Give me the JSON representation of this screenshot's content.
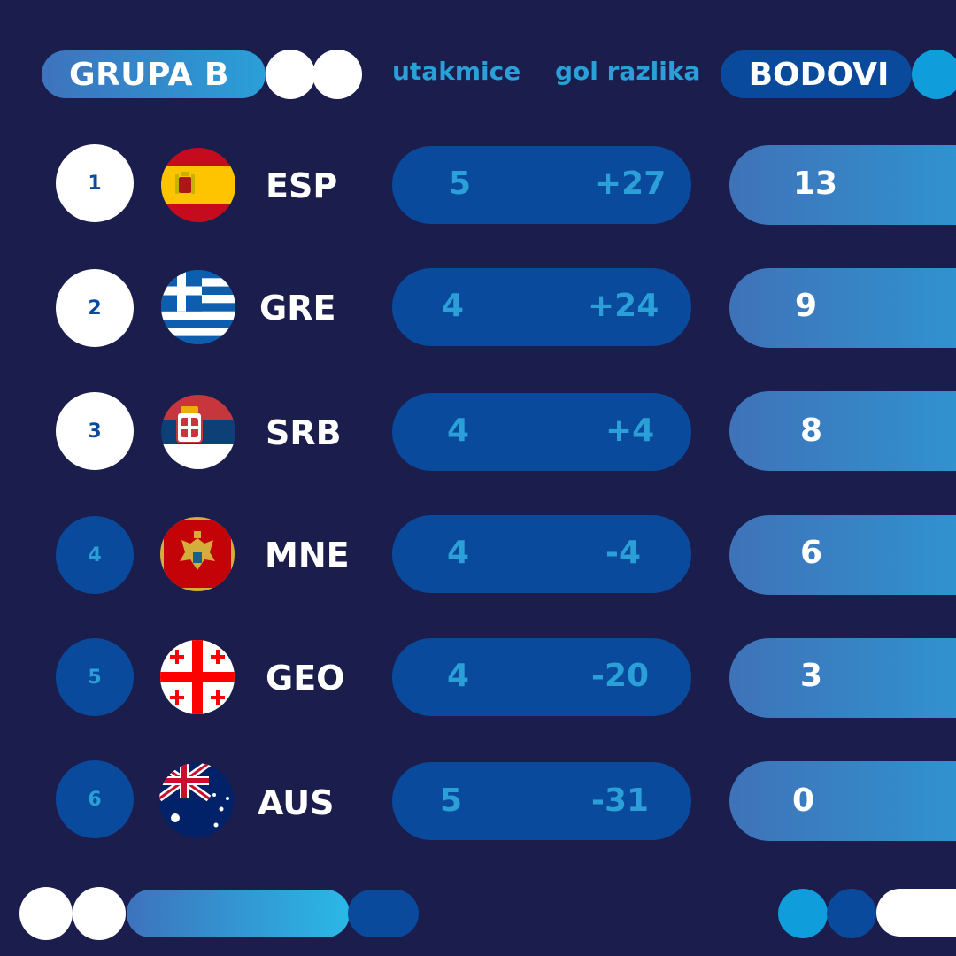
{
  "header": {
    "group_label": "GRUPA B",
    "matches_label": "utakmice",
    "goal_diff_label": "gol razlika",
    "points_label": "BODOVI"
  },
  "colors": {
    "background": "#1b1e4d",
    "navy": "#0a4a9c",
    "cyan": "#2a9fd8",
    "white": "#ffffff"
  },
  "standings": [
    {
      "rank": "1",
      "flag": "spain-flag-icon",
      "team": "ESP",
      "matches": "5",
      "goal_diff": "+27",
      "points": "13"
    },
    {
      "rank": "2",
      "flag": "greece-flag-icon",
      "team": "GRE",
      "matches": "4",
      "goal_diff": "+24",
      "points": "9"
    },
    {
      "rank": "3",
      "flag": "serbia-flag-icon",
      "team": "SRB",
      "matches": "4",
      "goal_diff": "+4",
      "points": "8"
    },
    {
      "rank": "4",
      "flag": "montenegro-flag-icon",
      "team": "MNE",
      "matches": "4",
      "goal_diff": "-4",
      "points": "6"
    },
    {
      "rank": "5",
      "flag": "georgia-flag-icon",
      "team": "GEO",
      "matches": "4",
      "goal_diff": "-20",
      "points": "3"
    },
    {
      "rank": "6",
      "flag": "australia-flag-icon",
      "team": "AUS",
      "matches": "5",
      "goal_diff": "-31",
      "points": "0"
    }
  ]
}
